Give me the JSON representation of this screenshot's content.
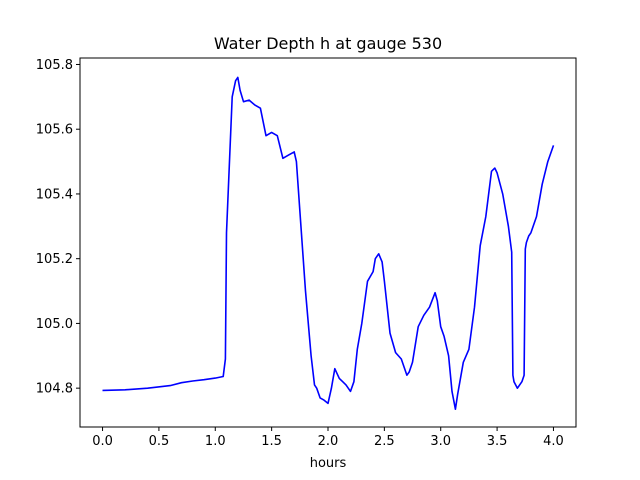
{
  "chart_data": {
    "type": "line",
    "title": "Water Depth h at gauge 530",
    "xlabel": "hours",
    "ylabel": "",
    "xlim": [
      -0.2,
      4.2
    ],
    "ylim": [
      104.68,
      105.82
    ],
    "xticks": [
      0.0,
      0.5,
      1.0,
      1.5,
      2.0,
      2.5,
      3.0,
      3.5,
      4.0
    ],
    "xtick_labels": [
      "0.0",
      "0.5",
      "1.0",
      "1.5",
      "2.0",
      "2.5",
      "3.0",
      "3.5",
      "4.0"
    ],
    "yticks": [
      104.8,
      105.0,
      105.2,
      105.4,
      105.6,
      105.8
    ],
    "ytick_labels": [
      "104.8",
      "105.0",
      "105.2",
      "105.4",
      "105.6",
      "105.8"
    ],
    "grid": false,
    "legend": "none",
    "series": [
      {
        "color": "#0000ff",
        "x": [
          0.0,
          0.2,
          0.4,
          0.6,
          0.7,
          0.8,
          0.9,
          1.0,
          1.07,
          1.09,
          1.1,
          1.12,
          1.15,
          1.18,
          1.2,
          1.22,
          1.25,
          1.3,
          1.35,
          1.4,
          1.45,
          1.5,
          1.55,
          1.6,
          1.65,
          1.7,
          1.72,
          1.75,
          1.8,
          1.85,
          1.88,
          1.9,
          1.93,
          1.96,
          2.0,
          2.03,
          2.06,
          2.1,
          2.13,
          2.16,
          2.2,
          2.23,
          2.26,
          2.3,
          2.35,
          2.4,
          2.42,
          2.45,
          2.48,
          2.5,
          2.55,
          2.6,
          2.65,
          2.7,
          2.72,
          2.75,
          2.8,
          2.85,
          2.9,
          2.95,
          2.97,
          3.0,
          3.03,
          3.07,
          3.1,
          3.13,
          3.15,
          3.2,
          3.25,
          3.3,
          3.35,
          3.4,
          3.45,
          3.48,
          3.5,
          3.55,
          3.6,
          3.63,
          3.64,
          3.65,
          3.68,
          3.72,
          3.74,
          3.75,
          3.76,
          3.78,
          3.8,
          3.85,
          3.9,
          3.95,
          4.0
        ],
        "y": [
          104.793,
          104.795,
          104.8,
          104.808,
          104.817,
          104.822,
          104.826,
          104.831,
          104.836,
          104.89,
          105.28,
          105.45,
          105.7,
          105.75,
          105.76,
          105.72,
          105.685,
          105.69,
          105.675,
          105.665,
          105.58,
          105.59,
          105.58,
          105.51,
          105.52,
          105.53,
          105.5,
          105.35,
          105.1,
          104.9,
          104.81,
          104.8,
          104.77,
          104.764,
          104.753,
          104.8,
          104.86,
          104.83,
          104.82,
          104.81,
          104.79,
          104.82,
          104.92,
          105.0,
          105.13,
          105.16,
          105.2,
          105.215,
          105.19,
          105.13,
          104.97,
          104.91,
          104.89,
          104.84,
          104.85,
          104.88,
          104.99,
          105.025,
          105.05,
          105.095,
          105.07,
          104.99,
          104.96,
          104.9,
          104.79,
          104.735,
          104.78,
          104.88,
          104.92,
          105.05,
          105.24,
          105.33,
          105.47,
          105.48,
          105.465,
          105.4,
          105.3,
          105.22,
          104.84,
          104.82,
          104.8,
          104.82,
          104.84,
          105.23,
          105.25,
          105.27,
          105.28,
          105.33,
          105.43,
          105.5,
          105.55
        ]
      }
    ]
  }
}
